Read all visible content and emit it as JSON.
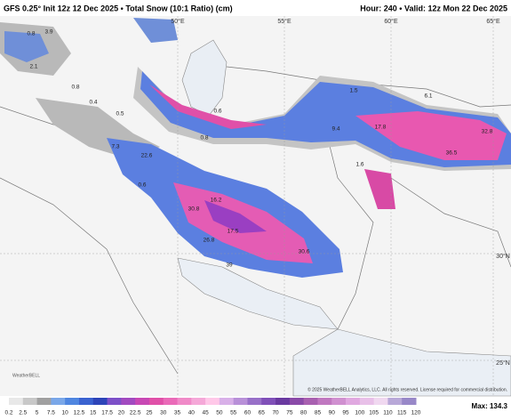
{
  "header": {
    "left": "GFS 0.25° Init 12z 12 Dec 2025 • Total Snow (10:1 Ratio) (cm)",
    "right": "Hour: 240 • Valid: 12z Mon 22 Dec 2025"
  },
  "grid_labels": [
    "50°E",
    "55°E",
    "60°E",
    "65°E",
    "30°N",
    "25°N"
  ],
  "map_labels": [
    0.8,
    3.9,
    2.1,
    0.8,
    0.4,
    0.5,
    7.3,
    22.6,
    0.6,
    0.8,
    30.8,
    16.2,
    17.5,
    26.8,
    39,
    30.6,
    9.4,
    17.8,
    6.1,
    1.5,
    36.5,
    32.8,
    1.6,
    0.6
  ],
  "colorbar": {
    "ticks": [
      0.2,
      2.5,
      5,
      7.5,
      10,
      12.5,
      15,
      17.5,
      20,
      22.5,
      25,
      30,
      35,
      40,
      45,
      50,
      55,
      60,
      65,
      70,
      75,
      80,
      85,
      90,
      95,
      100,
      105,
      110,
      115,
      120
    ]
  },
  "max_label": "Max: 134.3",
  "credit": "© 2025 WeatherBELL Analytics, LLC. All rights reserved. License required for commercial distribution.",
  "logo": "WeatherBELL"
}
